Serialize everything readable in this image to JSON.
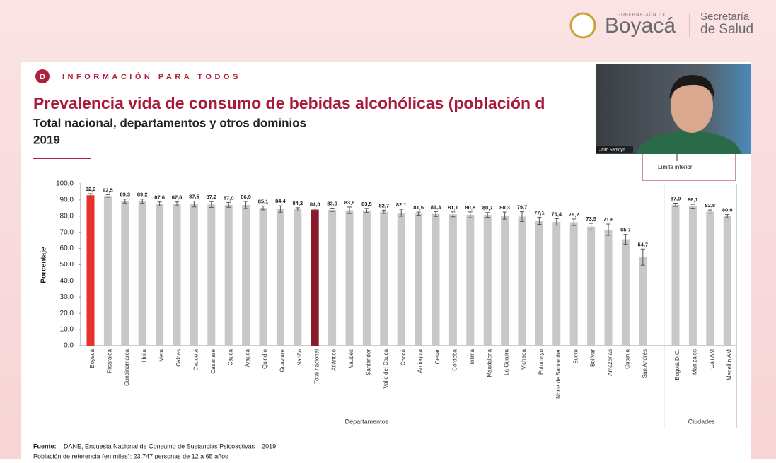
{
  "branding": {
    "top": "GOBERNACIÓN DE",
    "name": "Boyacá",
    "dept1": "Secretaría",
    "dept2": "de Salud"
  },
  "slide": {
    "kicker": "INFORMACIÓN PARA TODOS",
    "logo": "D",
    "source_label": "Fuente:",
    "source": "DANE, Encuesta Nacional de Consumo de Sustancias Psicoactivas – 2019",
    "reference": "Población de referencia (en miles): 23.747 personas de 12 a 65 años",
    "legend_item": "Límite inferior"
  },
  "webcam": {
    "name": "Jairo Santoyo"
  },
  "chart_data": {
    "type": "bar",
    "title": "Prevalencia vida de consumo de bebidas alcohólicas (población d",
    "subtitle": "Total nacional, departamentos y otros dominios",
    "subtitle2": "2019",
    "y_label": "Porcentaje",
    "categories": [
      "Boyacá",
      "Risaralda",
      "Cundinamarca",
      "Huila",
      "Meta",
      "Caldas",
      "Caquetá",
      "Casanare",
      "Cauca",
      "Arauca",
      "Quindío",
      "Guaviare",
      "Nariño",
      "Total nacional",
      "Atlántico",
      "Vaupés",
      "Santander",
      "Valle del Cauca",
      "Chocó",
      "Antioquia",
      "Cesar",
      "Córdoba",
      "Tolima",
      "Magdalena",
      "La Guajira",
      "Vichada",
      "Putumayo",
      "Norte de Santander",
      "Sucre",
      "Bolívar",
      "Amazonas",
      "Guainía",
      "San Andrés",
      "Bogotá D.C.",
      "Manizales",
      "Cali AM",
      "Medellín AM"
    ],
    "values": [
      92.9,
      92.5,
      89.3,
      89.2,
      87.6,
      87.6,
      87.5,
      87.2,
      87.0,
      86.9,
      85.1,
      84.4,
      84.2,
      84.0,
      83.9,
      83.6,
      83.5,
      82.7,
      82.1,
      81.5,
      81.3,
      81.1,
      80.8,
      80.7,
      80.3,
      79.7,
      77.1,
      76.4,
      76.2,
      73.5,
      71.6,
      65.7,
      54.7,
      87.0,
      86.1,
      82.8,
      80.0
    ],
    "value_labels": [
      "92,9",
      "92,5",
      "89,3",
      "89,2",
      "87,6",
      "87,6",
      "87,5",
      "87,2",
      "87,0",
      "86,9",
      "85,1",
      "84,4",
      "84,2",
      "84,0",
      "83,9",
      "83,6",
      "83,5",
      "82,7",
      "82,1",
      "81,5",
      "81,3",
      "81,1",
      "80,8",
      "80,7",
      "80,3",
      "79,7",
      "77,1",
      "76,4",
      "76,2",
      "73,5",
      "71,6",
      "65,7",
      "54,7",
      "87,0",
      "86,1",
      "82,8",
      "80,0"
    ],
    "errors": [
      1.0,
      0.8,
      1.2,
      1.3,
      1.2,
      1.2,
      1.8,
      1.8,
      1.5,
      2.2,
      1.2,
      2.0,
      1.0,
      0.4,
      1.0,
      2.0,
      1.3,
      1.0,
      2.2,
      1.0,
      1.5,
      1.5,
      1.8,
      1.5,
      2.2,
      3.0,
      2.2,
      2.0,
      2.0,
      2.0,
      3.5,
      3.0,
      5.0,
      1.0,
      1.2,
      1.0,
      1.0
    ],
    "colors": [
      "#e8312b",
      "#c8c8c8",
      "#c8c8c8",
      "#c8c8c8",
      "#c8c8c8",
      "#c8c8c8",
      "#c8c8c8",
      "#c8c8c8",
      "#c8c8c8",
      "#c8c8c8",
      "#c8c8c8",
      "#c8c8c8",
      "#c8c8c8",
      "#8b1a2b",
      "#c8c8c8",
      "#c8c8c8",
      "#c8c8c8",
      "#c8c8c8",
      "#c8c8c8",
      "#c8c8c8",
      "#c8c8c8",
      "#c8c8c8",
      "#c8c8c8",
      "#c8c8c8",
      "#c8c8c8",
      "#c8c8c8",
      "#c8c8c8",
      "#c8c8c8",
      "#c8c8c8",
      "#c8c8c8",
      "#c8c8c8",
      "#c8c8c8",
      "#c8c8c8",
      "#c8c8c8",
      "#c8c8c8",
      "#c8c8c8",
      "#c8c8c8"
    ],
    "groups": [
      {
        "label": "Departamentos",
        "size": 33
      },
      {
        "label": "Ciudades",
        "size": 4
      }
    ],
    "ylim": [
      0,
      100
    ],
    "yticks": [
      {
        "value": 0,
        "label": "0,0"
      },
      {
        "value": 10,
        "label": "10,0"
      },
      {
        "value": 20,
        "label": "20,0"
      },
      {
        "value": 30,
        "label": "30,0"
      },
      {
        "value": 40,
        "label": "40,0"
      },
      {
        "value": 50,
        "label": "50,0"
      },
      {
        "value": 60,
        "label": "60,0"
      },
      {
        "value": 70,
        "label": "70,0"
      },
      {
        "value": 80,
        "label": "80,0"
      },
      {
        "value": 90,
        "label": "90,0"
      },
      {
        "value": 100,
        "label": "100,0"
      }
    ]
  }
}
